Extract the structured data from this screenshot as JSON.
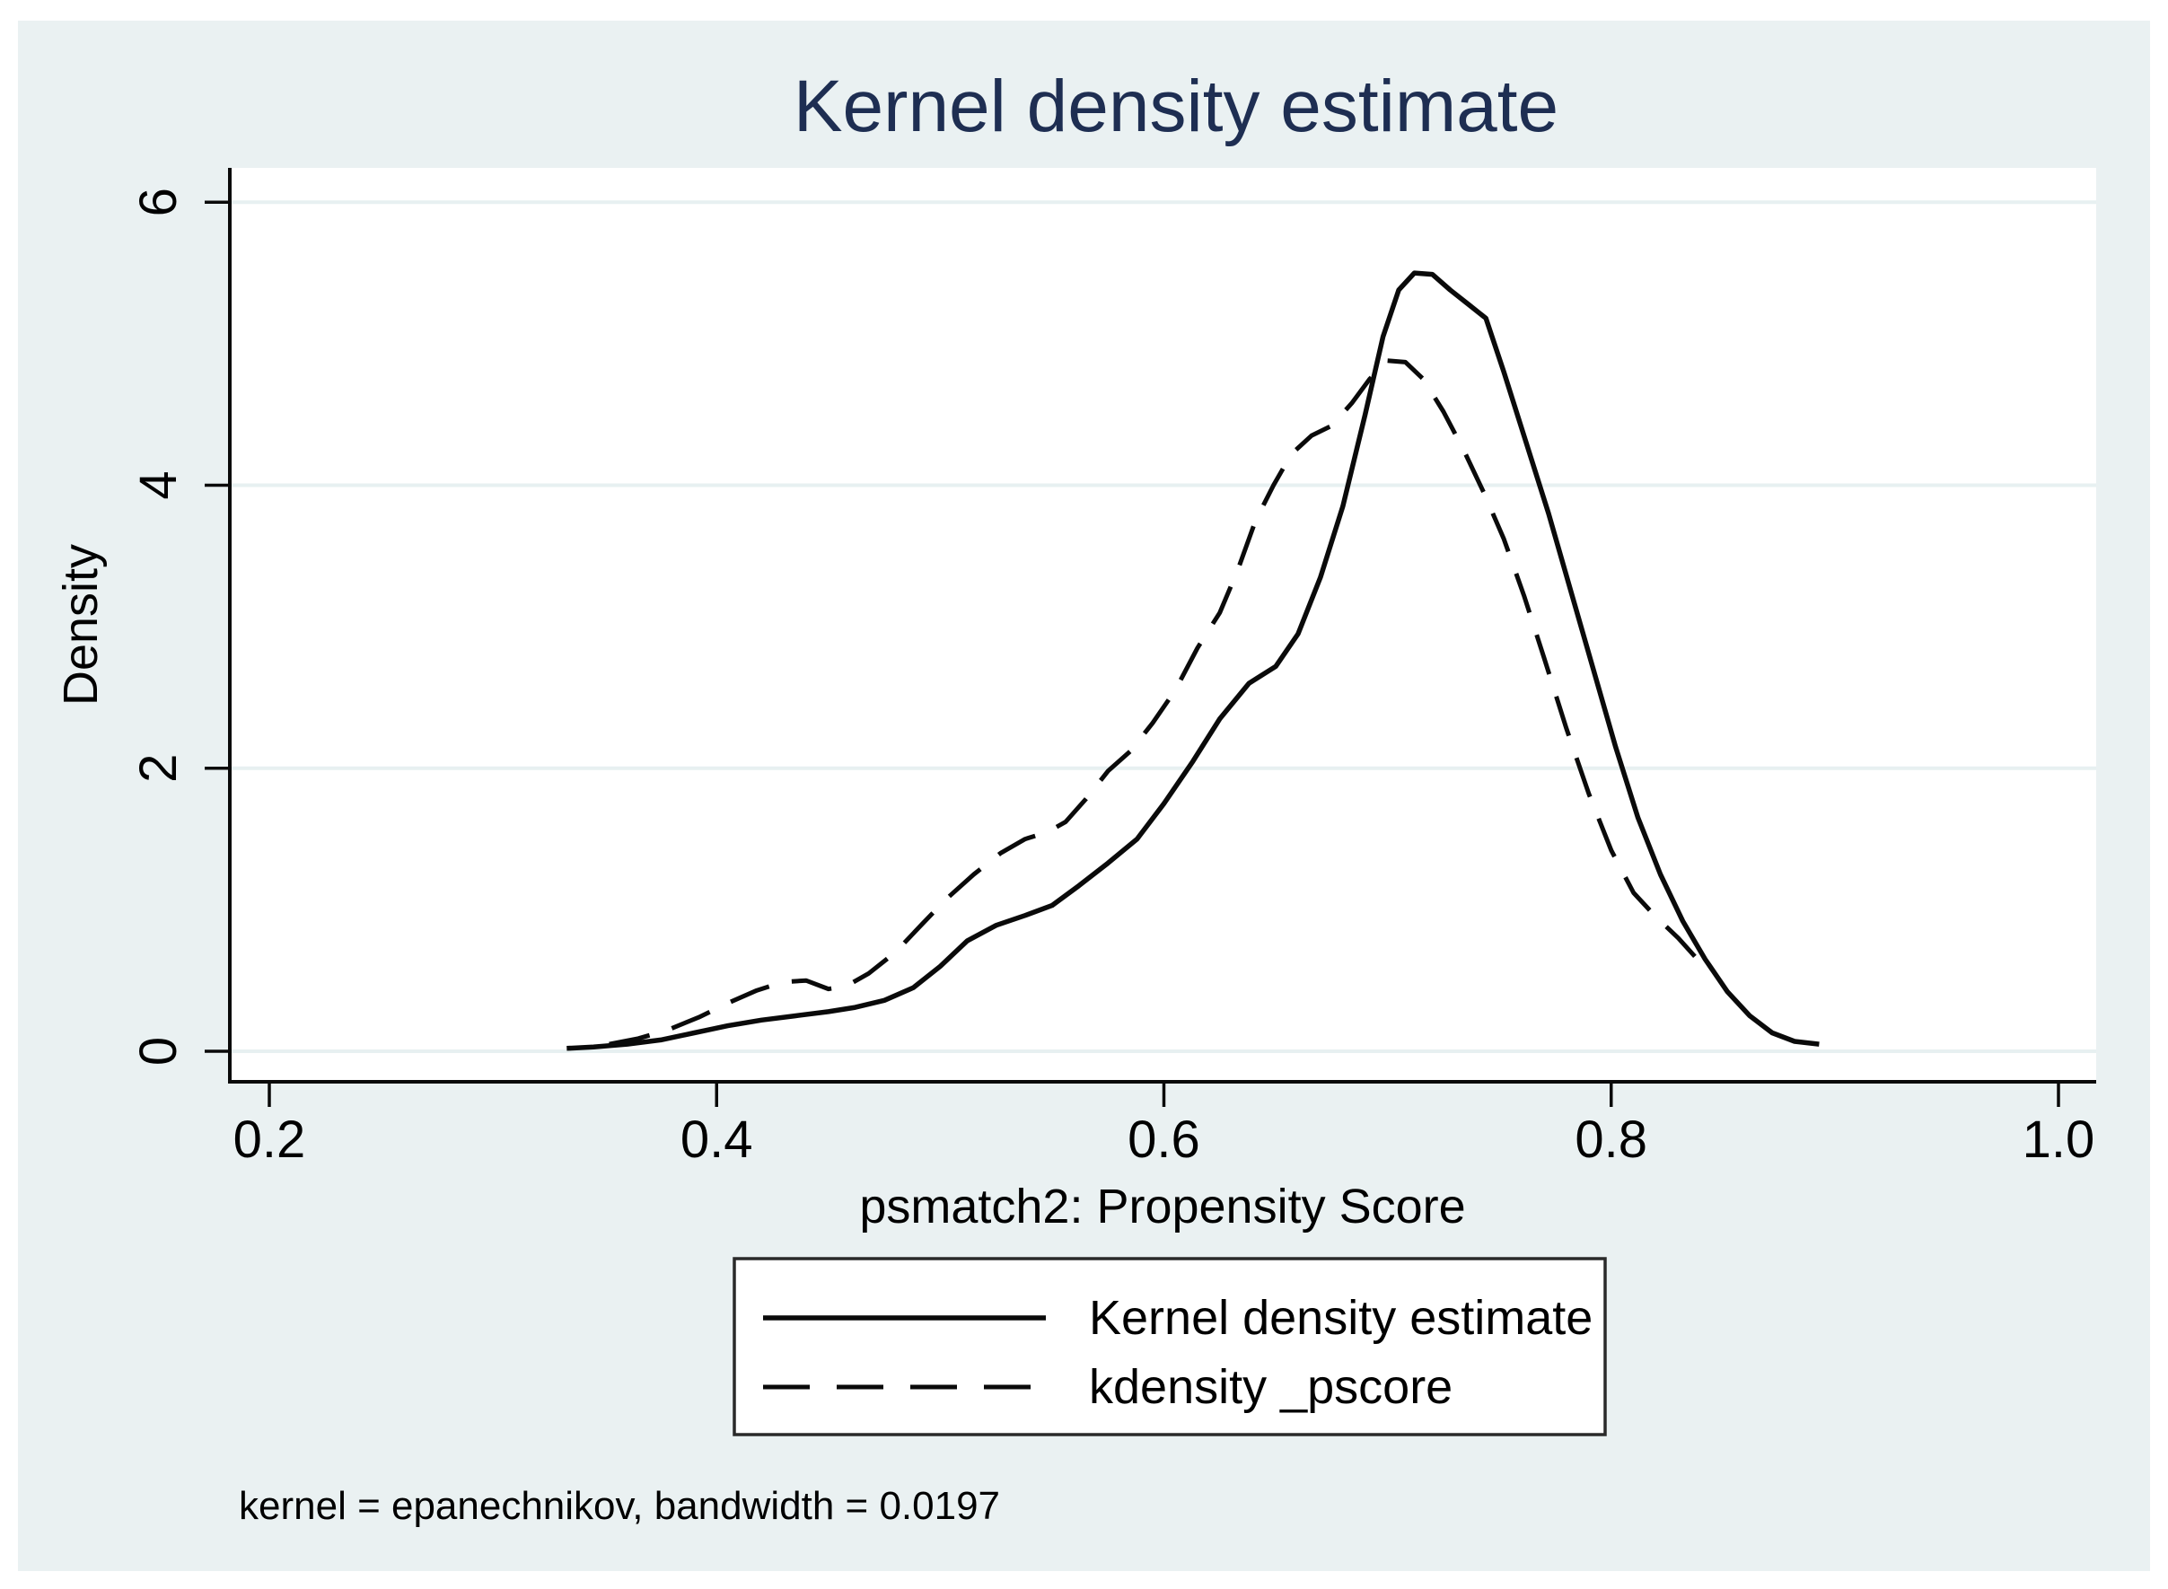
{
  "figure": {
    "title": "Kernel density estimate",
    "x_axis": {
      "label": "psmatch2: Propensity Score"
    },
    "y_axis": {
      "label": "Density"
    },
    "legend": {
      "items": [
        {
          "label": "Kernel density estimate",
          "style": "solid"
        },
        {
          "label": "kdensity _pscore",
          "style": "dashed"
        }
      ]
    },
    "note": "kernel = epanechnikov, bandwidth = 0.0197",
    "colors": {
      "canvas_background": "#eaf1f2",
      "plot_background": "#ffffff",
      "gridline": "#e7f0f1",
      "line": "#0a0a0a",
      "title": "#1e2e52",
      "legend_border": "#2a2a2a"
    }
  },
  "chart_data": {
    "type": "line",
    "title": "Kernel density estimate",
    "xlabel": "psmatch2: Propensity Score",
    "ylabel": "Density",
    "xlim": [
      0.182,
      1.016
    ],
    "ylim": [
      -0.22,
      6.24
    ],
    "x_ticks": [
      0.2,
      0.4,
      0.6,
      0.8,
      1.0
    ],
    "x_tick_labels": [
      "0.2",
      "0.4",
      "0.6",
      "0.8",
      "1.0"
    ],
    "y_ticks": [
      0,
      2,
      4,
      6
    ],
    "y_tick_labels": [
      "0",
      "2",
      "4",
      "6"
    ],
    "grid": "horizontal gridlines at y ticks",
    "legend_position": "below plot",
    "note": "kernel = epanechnikov, bandwidth = 0.0197",
    "series": [
      {
        "name": "Kernel density estimate",
        "style": "solid",
        "points": [
          [
            0.333,
            0.02
          ],
          [
            0.345,
            0.03
          ],
          [
            0.36,
            0.05
          ],
          [
            0.375,
            0.08
          ],
          [
            0.39,
            0.13
          ],
          [
            0.405,
            0.18
          ],
          [
            0.42,
            0.22
          ],
          [
            0.435,
            0.25
          ],
          [
            0.45,
            0.28
          ],
          [
            0.462,
            0.31
          ],
          [
            0.475,
            0.36
          ],
          [
            0.488,
            0.45
          ],
          [
            0.5,
            0.6
          ],
          [
            0.512,
            0.78
          ],
          [
            0.525,
            0.89
          ],
          [
            0.538,
            0.96
          ],
          [
            0.55,
            1.03
          ],
          [
            0.562,
            1.17
          ],
          [
            0.575,
            1.33
          ],
          [
            0.588,
            1.5
          ],
          [
            0.6,
            1.75
          ],
          [
            0.613,
            2.05
          ],
          [
            0.625,
            2.35
          ],
          [
            0.638,
            2.6
          ],
          [
            0.65,
            2.72
          ],
          [
            0.66,
            2.95
          ],
          [
            0.67,
            3.35
          ],
          [
            0.68,
            3.85
          ],
          [
            0.69,
            4.5
          ],
          [
            0.698,
            5.05
          ],
          [
            0.705,
            5.38
          ],
          [
            0.712,
            5.5
          ],
          [
            0.72,
            5.49
          ],
          [
            0.728,
            5.38
          ],
          [
            0.736,
            5.28
          ],
          [
            0.744,
            5.18
          ],
          [
            0.752,
            4.8
          ],
          [
            0.762,
            4.3
          ],
          [
            0.772,
            3.8
          ],
          [
            0.782,
            3.25
          ],
          [
            0.792,
            2.7
          ],
          [
            0.802,
            2.15
          ],
          [
            0.812,
            1.65
          ],
          [
            0.822,
            1.25
          ],
          [
            0.832,
            0.92
          ],
          [
            0.842,
            0.65
          ],
          [
            0.852,
            0.42
          ],
          [
            0.862,
            0.25
          ],
          [
            0.872,
            0.13
          ],
          [
            0.882,
            0.07
          ],
          [
            0.893,
            0.05
          ]
        ]
      },
      {
        "name": "kdensity _pscore",
        "style": "dashed",
        "points": [
          [
            0.352,
            0.05
          ],
          [
            0.365,
            0.09
          ],
          [
            0.378,
            0.15
          ],
          [
            0.392,
            0.24
          ],
          [
            0.405,
            0.34
          ],
          [
            0.418,
            0.43
          ],
          [
            0.43,
            0.49
          ],
          [
            0.44,
            0.5
          ],
          [
            0.45,
            0.44
          ],
          [
            0.458,
            0.46
          ],
          [
            0.468,
            0.55
          ],
          [
            0.48,
            0.7
          ],
          [
            0.492,
            0.9
          ],
          [
            0.503,
            1.08
          ],
          [
            0.515,
            1.25
          ],
          [
            0.527,
            1.4
          ],
          [
            0.538,
            1.5
          ],
          [
            0.548,
            1.55
          ],
          [
            0.556,
            1.62
          ],
          [
            0.565,
            1.78
          ],
          [
            0.575,
            1.98
          ],
          [
            0.585,
            2.12
          ],
          [
            0.595,
            2.32
          ],
          [
            0.605,
            2.55
          ],
          [
            0.615,
            2.85
          ],
          [
            0.625,
            3.1
          ],
          [
            0.633,
            3.4
          ],
          [
            0.641,
            3.75
          ],
          [
            0.649,
            4.0
          ],
          [
            0.657,
            4.22
          ],
          [
            0.666,
            4.35
          ],
          [
            0.675,
            4.42
          ],
          [
            0.684,
            4.58
          ],
          [
            0.692,
            4.75
          ],
          [
            0.7,
            4.88
          ],
          [
            0.708,
            4.87
          ],
          [
            0.716,
            4.75
          ],
          [
            0.725,
            4.52
          ],
          [
            0.734,
            4.25
          ],
          [
            0.743,
            3.95
          ],
          [
            0.752,
            3.62
          ],
          [
            0.761,
            3.22
          ],
          [
            0.77,
            2.78
          ],
          [
            0.78,
            2.28
          ],
          [
            0.79,
            1.82
          ],
          [
            0.8,
            1.42
          ],
          [
            0.81,
            1.12
          ],
          [
            0.82,
            0.95
          ],
          [
            0.83,
            0.8
          ],
          [
            0.838,
            0.66
          ]
        ]
      }
    ]
  }
}
